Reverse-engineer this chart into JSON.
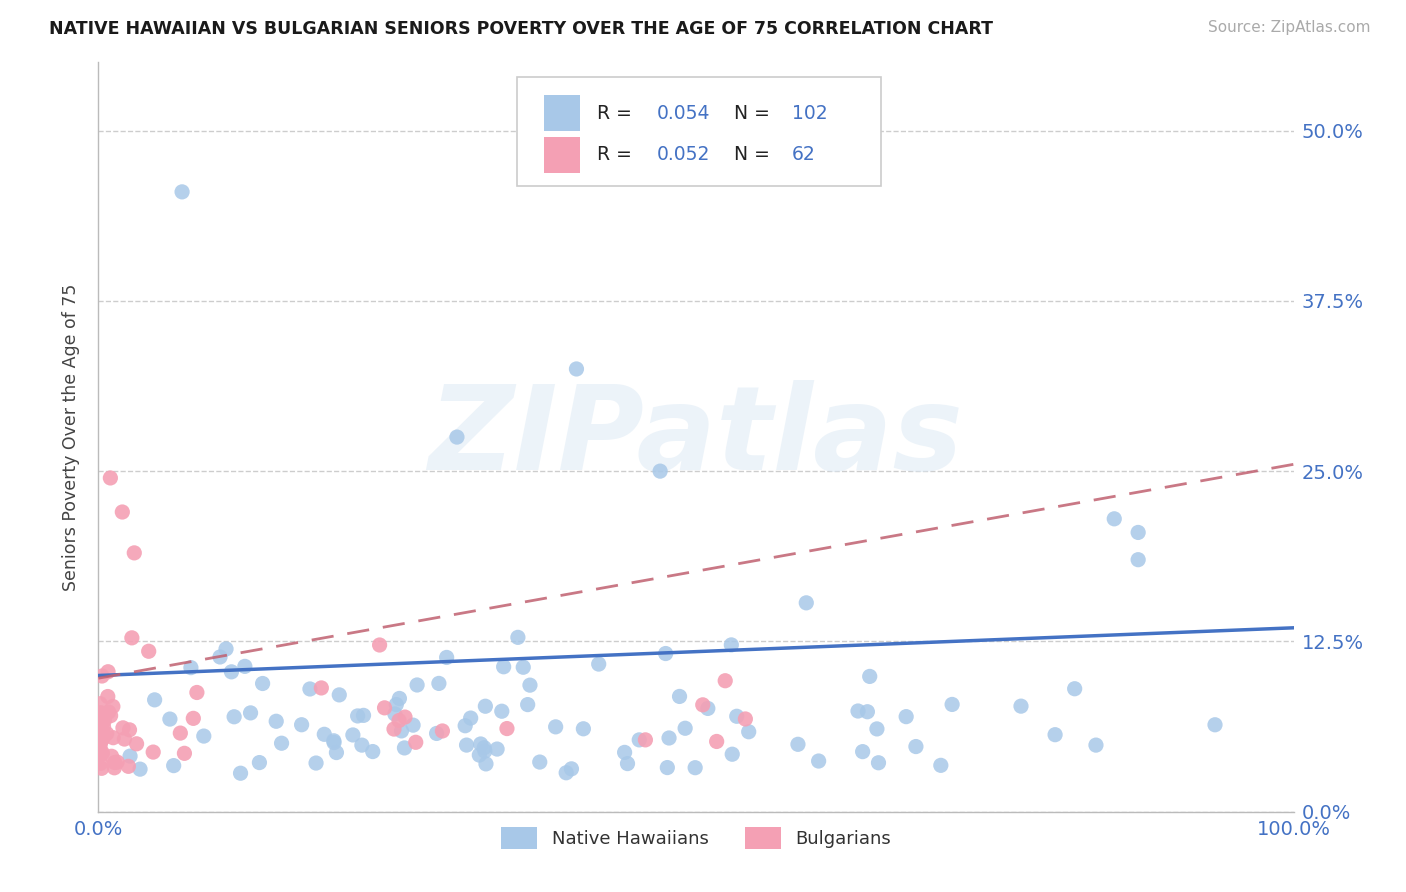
{
  "title": "NATIVE HAWAIIAN VS BULGARIAN SENIORS POVERTY OVER THE AGE OF 75 CORRELATION CHART",
  "source": "Source: ZipAtlas.com",
  "ylabel": "Seniors Poverty Over the Age of 75",
  "r_hawaiian": 0.054,
  "n_hawaiian": 102,
  "r_bulgarian": 0.052,
  "n_bulgarian": 62,
  "color_hawaiian": "#a8c8e8",
  "color_bulgarian": "#f4a0b4",
  "line_color_hawaiian": "#4472c4",
  "line_color_bulgarian": "#c06070",
  "title_color": "#1a1a1a",
  "legend_value_color": "#4472c4",
  "background_color": "#ffffff",
  "grid_color": "#c8c8c8",
  "watermark": "ZIPatlas",
  "axis_color": "#4472c4",
  "xlim": [
    0.0,
    1.0
  ],
  "ylim": [
    0.0,
    0.55
  ],
  "ytick_vals": [
    0.0,
    0.125,
    0.25,
    0.375,
    0.5
  ],
  "ytick_labels": [
    "0.0%",
    "12.5%",
    "25.0%",
    "37.5%",
    "50.0%"
  ],
  "xtick_vals": [
    0.0,
    1.0
  ],
  "xtick_labels": [
    "0.0%",
    "100.0%"
  ]
}
